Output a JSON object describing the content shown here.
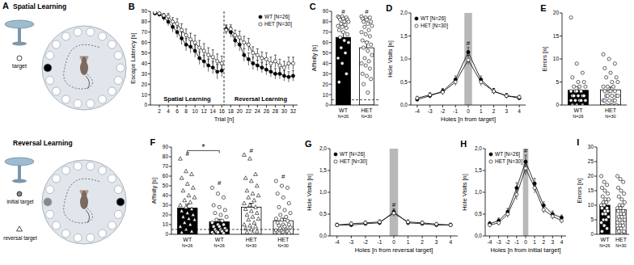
{
  "chart_data": [
    {
      "panel": "B",
      "type": "line",
      "x": [
        1,
        2,
        3,
        4,
        5,
        6,
        7,
        8,
        9,
        10,
        11,
        12,
        13,
        14,
        15,
        16,
        17,
        18,
        19,
        20,
        21,
        22,
        23,
        24,
        25,
        26,
        27,
        28,
        29,
        30,
        31,
        32
      ],
      "xlim": [
        0,
        33
      ],
      "xticks": [
        2,
        4,
        6,
        8,
        10,
        12,
        14,
        16,
        18,
        20,
        22,
        24,
        26,
        28,
        30,
        32
      ],
      "ylim": [
        0,
        90
      ],
      "yticks": [
        0,
        10,
        20,
        30,
        40,
        50,
        60,
        70,
        80,
        90
      ],
      "xlabel": "Trial [n]",
      "ylabel": "Escape Latency [s]",
      "legend": "top-right",
      "divider": 16.5,
      "annotations": [
        "Spatial Learning",
        "Reversal Learning"
      ],
      "series": [
        {
          "name": "WT [N=26]",
          "color": "#000000",
          "marker": "circle",
          "values": [
            88,
            87,
            84,
            80,
            75,
            70,
            64,
            58,
            56,
            52,
            45,
            42,
            38,
            36,
            32,
            33,
            73,
            70,
            62,
            58,
            48,
            44,
            40,
            38,
            36,
            34,
            32,
            30,
            30,
            28,
            27,
            28
          ],
          "errors": [
            1,
            2,
            3,
            4,
            5,
            5,
            6,
            6,
            6,
            6,
            6,
            6,
            6,
            6,
            7,
            6,
            4,
            5,
            6,
            6,
            6,
            6,
            6,
            5,
            5,
            5,
            5,
            5,
            5,
            5,
            5,
            5
          ]
        },
        {
          "name": "HET [N=30]",
          "color": "#ffffff",
          "marker": "circle",
          "values": [
            89,
            88,
            86,
            85,
            80,
            78,
            72,
            67,
            63,
            60,
            55,
            52,
            48,
            46,
            42,
            40,
            72,
            73,
            67,
            65,
            60,
            58,
            50,
            48,
            45,
            44,
            40,
            42,
            38,
            36,
            40,
            40
          ],
          "errors": [
            1,
            1,
            2,
            3,
            4,
            5,
            6,
            6,
            6,
            7,
            7,
            7,
            7,
            7,
            7,
            7,
            4,
            4,
            5,
            6,
            6,
            6,
            6,
            6,
            6,
            6,
            6,
            6,
            6,
            6,
            6,
            6
          ]
        }
      ]
    },
    {
      "panel": "C",
      "type": "bar",
      "categories": [
        "WT",
        "HET"
      ],
      "n_labels": [
        "N=26",
        "N=30"
      ],
      "colors": [
        "#000000",
        "#ffffff"
      ],
      "values": [
        65,
        55
      ],
      "errors": [
        5,
        6
      ],
      "ylim": [
        0,
        90
      ],
      "yticks": [
        0,
        10,
        20,
        30,
        40,
        50,
        60,
        70,
        80,
        90
      ],
      "ylabel": "Affinity [s]",
      "chance": 5,
      "annotations": [
        {
          "text": "#",
          "index": 0
        },
        {
          "text": "#",
          "index": 1
        }
      ],
      "points": [
        {
          "marker": "circle",
          "values": [
            85,
            85,
            84,
            84,
            83,
            82,
            82,
            80,
            80,
            78,
            77,
            76,
            75,
            74,
            72,
            70,
            68,
            65,
            62,
            60,
            55,
            50,
            45,
            40,
            30,
            22
          ]
        },
        {
          "marker": "circle",
          "values": [
            85,
            84,
            84,
            83,
            82,
            80,
            80,
            78,
            76,
            75,
            72,
            70,
            68,
            66,
            62,
            60,
            58,
            55,
            52,
            48,
            45,
            42,
            40,
            38,
            35,
            30,
            28,
            25,
            20,
            12
          ]
        }
      ]
    },
    {
      "panel": "D",
      "type": "line",
      "x": [
        -4,
        -3,
        -2,
        -1,
        0,
        1,
        2,
        3,
        4
      ],
      "xlim": [
        -4.5,
        4.5
      ],
      "xticks": [
        -4,
        -3,
        -2,
        -1,
        0,
        1,
        2,
        3,
        4
      ],
      "ylim": [
        0,
        2
      ],
      "yticks": [
        {
          "value": 0,
          "label": "0,0"
        },
        {
          "value": 0.5,
          "label": "0,5"
        },
        {
          "value": 1,
          "label": "1,0"
        },
        {
          "value": 1.5,
          "label": "1,5"
        },
        {
          "value": 2,
          "label": "2,0"
        }
      ],
      "xlabel": "Holes [n from target]",
      "ylabel": "Hole Visits [n]",
      "legend": "top-left",
      "highlight": 0,
      "annotations": [
        {
          "text": "#",
          "x": 0
        }
      ],
      "series": [
        {
          "name": "WT [N=26]",
          "color": "#000000",
          "marker": "circle",
          "values": [
            0.12,
            0.2,
            0.3,
            0.55,
            1.15,
            0.55,
            0.3,
            0.2,
            0.15
          ],
          "errors": [
            0.04,
            0.05,
            0.06,
            0.08,
            0.1,
            0.08,
            0.06,
            0.05,
            0.04
          ]
        },
        {
          "name": "HET [N=30]",
          "color": "#ffffff",
          "marker": "circle",
          "values": [
            0.15,
            0.22,
            0.28,
            0.5,
            0.98,
            0.5,
            0.3,
            0.2,
            0.17
          ],
          "errors": [
            0.04,
            0.05,
            0.06,
            0.08,
            0.1,
            0.08,
            0.06,
            0.05,
            0.04
          ]
        }
      ]
    },
    {
      "panel": "E",
      "type": "bar",
      "categories": [
        "WT",
        "HET"
      ],
      "n_labels": [
        "N=26",
        "N=30"
      ],
      "colors": [
        "#000000",
        "#ffffff"
      ],
      "values": [
        3.2,
        3.3
      ],
      "errors": [
        0.8,
        0.6
      ],
      "ylim": [
        0,
        20
      ],
      "yticks": [
        0,
        5,
        10,
        15,
        20
      ],
      "ylabel": "Errors [n]",
      "points": [
        {
          "marker": "circle",
          "values": [
            19,
            9,
            7,
            6,
            5,
            5,
            4,
            4,
            4,
            3,
            3,
            3,
            3,
            2,
            2,
            2,
            2,
            2,
            1,
            1,
            1,
            1,
            1,
            0,
            0,
            0
          ]
        },
        {
          "marker": "circle",
          "values": [
            11,
            10,
            9,
            8,
            7,
            6,
            6,
            5,
            5,
            4,
            4,
            4,
            3,
            3,
            3,
            3,
            2,
            2,
            2,
            2,
            2,
            1,
            1,
            1,
            1,
            1,
            0,
            0,
            0,
            0
          ]
        }
      ]
    },
    {
      "panel": "F",
      "type": "bar",
      "categories": [
        "WT",
        "WT",
        "HET",
        "HET"
      ],
      "n_labels": [
        "N=26",
        "N=26",
        "N=30",
        "N=30"
      ],
      "colors": [
        "#000000",
        "#000000",
        "#ffffff",
        "#ffffff"
      ],
      "values": [
        27,
        13,
        28,
        14
      ],
      "errors": [
        4,
        2.5,
        4,
        2.5
      ],
      "ylim": [
        0,
        90
      ],
      "yticks": [
        0,
        10,
        20,
        30,
        40,
        50,
        60,
        70,
        80,
        90
      ],
      "ylabel": "Affinity [s]",
      "chance": 5,
      "annotations": [
        {
          "text": "#",
          "index": 0
        },
        {
          "text": "#",
          "index": 1
        },
        {
          "text": "#",
          "index": 2
        },
        {
          "text": "#",
          "index": 3
        }
      ],
      "comparisons": [
        {
          "text": "*",
          "from": 0,
          "to": 1
        }
      ],
      "points": [
        {
          "marker": "triangle",
          "values": [
            78,
            65,
            62,
            58,
            52,
            48,
            45,
            40,
            38,
            35,
            33,
            30,
            28,
            26,
            24,
            22,
            20,
            18,
            16,
            15,
            12,
            10,
            8,
            5,
            3,
            2
          ]
        },
        {
          "marker": "circle",
          "values": [
            48,
            42,
            38,
            30,
            28,
            25,
            22,
            20,
            18,
            15,
            14,
            12,
            10,
            10,
            8,
            8,
            6,
            5,
            5,
            4,
            3,
            3,
            2,
            2,
            1,
            0
          ]
        },
        {
          "marker": "triangle",
          "values": [
            82,
            78,
            62,
            58,
            55,
            50,
            45,
            42,
            40,
            38,
            35,
            32,
            30,
            28,
            26,
            24,
            22,
            20,
            18,
            16,
            15,
            12,
            10,
            9,
            8,
            6,
            5,
            3,
            2,
            1
          ]
        },
        {
          "marker": "circle",
          "values": [
            55,
            50,
            48,
            42,
            38,
            32,
            28,
            25,
            22,
            20,
            18,
            16,
            15,
            14,
            12,
            10,
            10,
            9,
            8,
            7,
            6,
            5,
            4,
            4,
            3,
            2,
            2,
            1,
            1,
            0
          ]
        }
      ]
    },
    {
      "panel": "G",
      "type": "line",
      "x": [
        -4,
        -3,
        -2,
        -1,
        0,
        1,
        2,
        3,
        4
      ],
      "xlim": [
        -4.5,
        4.5
      ],
      "xticks": [
        -4,
        -3,
        -2,
        -1,
        0,
        1,
        2,
        3,
        4
      ],
      "ylim": [
        0,
        2
      ],
      "yticks": [
        {
          "value": 0,
          "label": "0,0"
        },
        {
          "value": 0.5,
          "label": "0,5"
        },
        {
          "value": 1,
          "label": "1,0"
        },
        {
          "value": 1.5,
          "label": "1,5"
        },
        {
          "value": 2,
          "label": "2,0"
        }
      ],
      "xlabel": "Holes [n from reversal target]",
      "ylabel": "Hole Visits [n]",
      "legend": "top-left",
      "highlight": 0,
      "annotations": [
        {
          "text": "#",
          "x": 0
        }
      ],
      "series": [
        {
          "name": "WT [N=26]",
          "color": "#000000",
          "marker": "circle",
          "values": [
            0.25,
            0.25,
            0.28,
            0.3,
            0.55,
            0.3,
            0.28,
            0.25,
            0.25
          ],
          "errors": [
            0.04,
            0.04,
            0.04,
            0.05,
            0.07,
            0.05,
            0.04,
            0.04,
            0.04
          ]
        },
        {
          "name": "HET [N=30]",
          "color": "#ffffff",
          "marker": "circle",
          "values": [
            0.25,
            0.28,
            0.3,
            0.32,
            0.52,
            0.32,
            0.3,
            0.27,
            0.25
          ],
          "errors": [
            0.04,
            0.04,
            0.04,
            0.05,
            0.07,
            0.05,
            0.04,
            0.04,
            0.04
          ]
        }
      ]
    },
    {
      "panel": "H",
      "type": "line",
      "x": [
        -4,
        -3,
        -2,
        -1,
        0,
        1,
        2,
        3,
        4
      ],
      "xlim": [
        -4.5,
        4.5
      ],
      "xticks": [
        -4,
        -3,
        -2,
        -1,
        0,
        1,
        2,
        3,
        4
      ],
      "ylim": [
        0,
        2
      ],
      "yticks": [
        {
          "value": 0,
          "label": "0,0"
        },
        {
          "value": 0.5,
          "label": "0,5"
        },
        {
          "value": 1,
          "label": "1,0"
        },
        {
          "value": 1.5,
          "label": "1,5"
        },
        {
          "value": 2,
          "label": "2,0"
        }
      ],
      "xlabel": "Holes [n from initial target]",
      "ylabel": "Hole Visits [n]",
      "legend": "top-left",
      "highlight": 0,
      "annotations": [
        {
          "text": "#",
          "x": 0
        }
      ],
      "series": [
        {
          "name": "WT [N=26]",
          "color": "#000000",
          "marker": "circle",
          "values": [
            0.28,
            0.35,
            0.55,
            1.1,
            1.7,
            1.2,
            0.7,
            0.5,
            0.42
          ],
          "errors": [
            0.05,
            0.06,
            0.08,
            0.12,
            0.15,
            0.12,
            0.08,
            0.07,
            0.06
          ]
        },
        {
          "name": "HET [N=30]",
          "color": "#ffffff",
          "marker": "circle",
          "values": [
            0.25,
            0.3,
            0.5,
            0.95,
            1.55,
            1.1,
            0.6,
            0.45,
            0.35
          ],
          "errors": [
            0.05,
            0.06,
            0.08,
            0.12,
            0.15,
            0.12,
            0.08,
            0.07,
            0.06
          ]
        }
      ]
    },
    {
      "panel": "I",
      "type": "bar",
      "categories": [
        "WT",
        "HET"
      ],
      "n_labels": [
        "N=26",
        "N=30"
      ],
      "colors": [
        "#000000",
        "#ffffff"
      ],
      "values": [
        10,
        8.5
      ],
      "errors": [
        1,
        1
      ],
      "ylim": [
        0,
        30
      ],
      "yticks": [
        0,
        5,
        10,
        15,
        20,
        25,
        30
      ],
      "ylabel": "Errors [n]",
      "points": [
        {
          "marker": "circle",
          "values": [
            20,
            18,
            17,
            16,
            15,
            14,
            13,
            12,
            12,
            11,
            11,
            10,
            10,
            9,
            9,
            8,
            8,
            7,
            7,
            6,
            5,
            5,
            4,
            3,
            2,
            1
          ]
        },
        {
          "marker": "circle",
          "values": [
            20,
            19,
            18,
            16,
            15,
            14,
            13,
            12,
            11,
            10,
            10,
            9,
            9,
            8,
            8,
            7,
            7,
            6,
            6,
            5,
            5,
            4,
            4,
            3,
            3,
            2,
            2,
            1,
            1,
            0
          ]
        }
      ]
    }
  ],
  "diagrams": [
    {
      "panel": "A",
      "title": "Spatial Learning",
      "labels": [
        "target"
      ]
    },
    {
      "title": "Reversal Learning",
      "labels": [
        "initial target",
        "reversal target"
      ]
    }
  ]
}
